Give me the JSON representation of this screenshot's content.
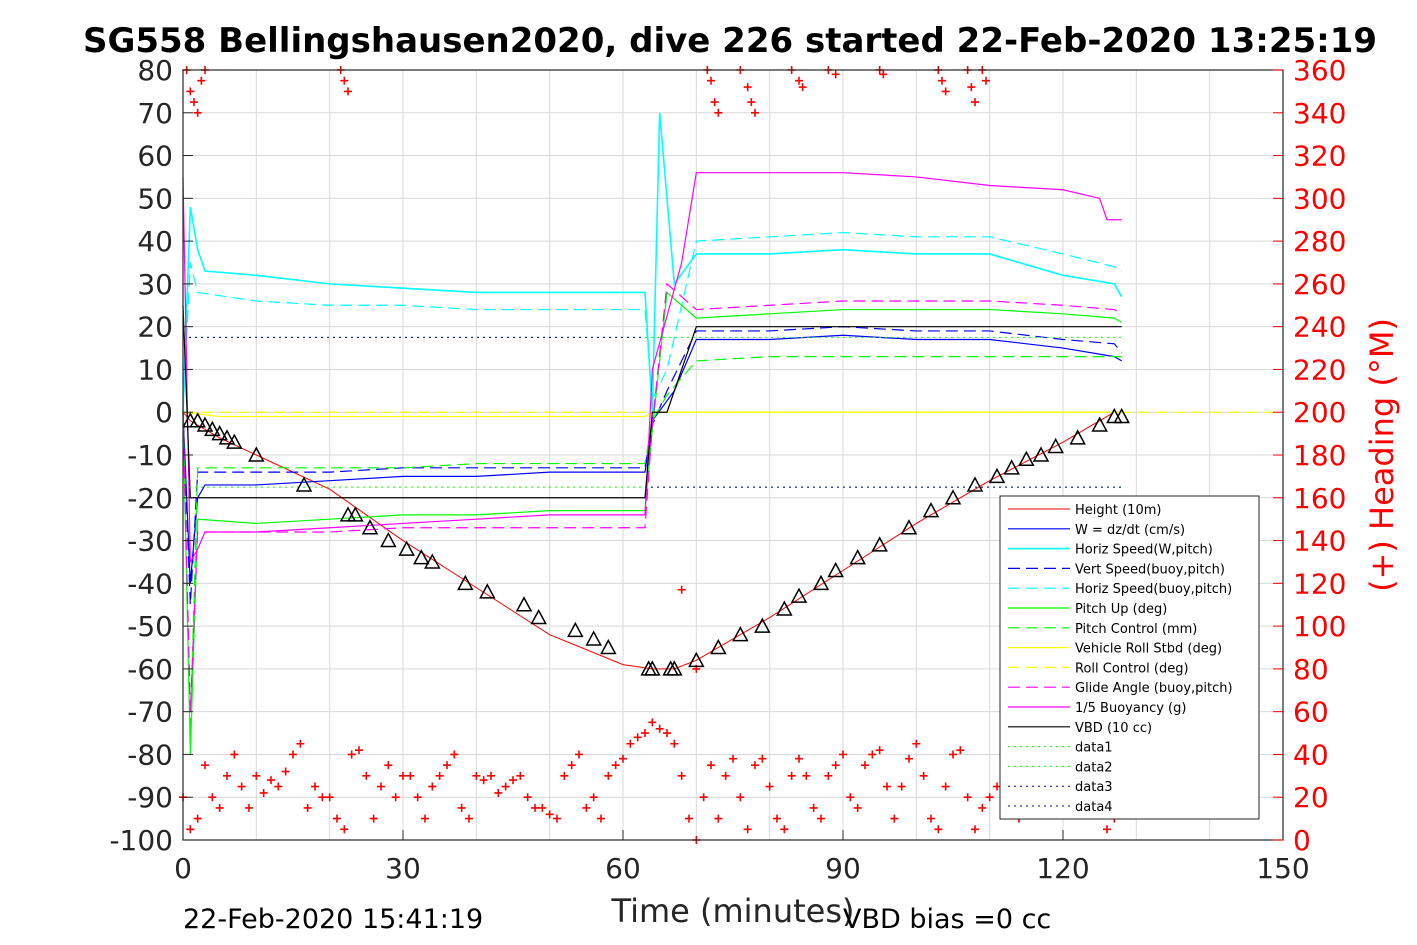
{
  "header": {
    "title": "SG558 Bellingshausen2020, dive 226 started 22-Feb-2020 13:25:19"
  },
  "footer": {
    "end_time": "22-Feb-2020 15:41:19",
    "vbd_bias": "VBD bias =0 cc"
  },
  "colors": {
    "height": "#ff0000",
    "w": "#0000ff",
    "horiz_speed": "#00ffff",
    "pitch": "#00ff00",
    "roll": "#ffff00",
    "glide": "#ff00ff",
    "buoyancy": "#ff00ff",
    "vbd": "#000000",
    "heading": "#ff0000",
    "grid": "#d9d9d9"
  },
  "chart_data": {
    "type": "line",
    "xlabel": "Time (minutes)",
    "ylabel_left": "",
    "ylabel_right": "(+) Heading (°M)",
    "xlim": [
      0,
      150
    ],
    "ylim_left": [
      -100,
      80
    ],
    "ylim_right": [
      0,
      360
    ],
    "grid": true,
    "legend_position": "lower-right",
    "x_ticks": [
      "0",
      "30",
      "60",
      "90",
      "120",
      "150"
    ],
    "y_ticks_left": [
      "80",
      "70",
      "60",
      "50",
      "40",
      "30",
      "20",
      "10",
      "0",
      "-10",
      "-20",
      "-30",
      "-40",
      "-50",
      "-60",
      "-70",
      "-80",
      "-90",
      "-100"
    ],
    "y_ticks_right": [
      "360",
      "340",
      "320",
      "300",
      "280",
      "260",
      "240",
      "220",
      "200",
      "180",
      "160",
      "140",
      "120",
      "100",
      "80",
      "60",
      "40",
      "20",
      "0"
    ],
    "legend": [
      "Height (10m)",
      "W = dz/dt (cm/s)",
      "Horiz Speed(W,pitch)",
      "Vert Speed(buoy,pitch)",
      "Horiz Speed(buoy,pitch)",
      "Pitch Up (deg)",
      "Pitch Control (mm)",
      "Vehicle Roll Stbd (deg)",
      "Roll Control (deg)",
      "Glide Angle (buoy,pitch)",
      "1/5 Buoyancy (g)",
      "VBD (10 cc)",
      "data1",
      "data2",
      "data3",
      "data4"
    ],
    "series": [
      {
        "name": "Height (10m)",
        "x": [
          0,
          1,
          5,
          10,
          20,
          30,
          40,
          50,
          60,
          64,
          67,
          70,
          80,
          90,
          100,
          110,
          120,
          127
        ],
        "y": [
          0,
          -2,
          -6,
          -10,
          -18,
          -30,
          -41,
          -52,
          -59,
          -60,
          -60,
          -58,
          -48,
          -37,
          -26,
          -16,
          -7,
          0
        ]
      },
      {
        "name": "W = dz/dt (cm/s)",
        "x": [
          0,
          1,
          2,
          3,
          10,
          20,
          30,
          40,
          50,
          63,
          64,
          67,
          70,
          80,
          90,
          100,
          110,
          120,
          127,
          128
        ],
        "y": [
          0,
          -40,
          -20,
          -17,
          -17,
          -16,
          -15,
          -15,
          -14,
          -14,
          -2,
          5,
          17,
          17,
          18,
          17,
          17,
          15,
          13,
          12
        ]
      },
      {
        "name": "Horiz Speed(W,pitch)",
        "x": [
          0,
          1,
          2,
          3,
          10,
          20,
          30,
          40,
          50,
          63,
          64,
          65,
          67,
          70,
          80,
          90,
          100,
          110,
          120,
          127,
          128
        ],
        "y": [
          0,
          48,
          38,
          33,
          32,
          30,
          29,
          28,
          28,
          28,
          0,
          70,
          30,
          37,
          37,
          38,
          37,
          37,
          32,
          30,
          27
        ]
      },
      {
        "name": "Vert Speed(buoy,pitch)",
        "x": [
          0,
          1,
          2,
          10,
          20,
          30,
          40,
          50,
          63,
          64,
          66,
          70,
          80,
          90,
          100,
          110,
          120,
          127,
          128
        ],
        "y": [
          0,
          -45,
          -14,
          -14,
          -14,
          -13,
          -13,
          -13,
          -13,
          -3,
          5,
          19,
          19,
          20,
          19,
          19,
          17,
          16,
          14
        ]
      },
      {
        "name": "Horiz Speed(buoy,pitch)",
        "x": [
          0,
          1,
          2,
          10,
          20,
          30,
          40,
          50,
          63,
          64,
          66,
          70,
          80,
          90,
          100,
          110,
          120,
          127,
          128
        ],
        "y": [
          0,
          35,
          28,
          26,
          25,
          25,
          24,
          24,
          24,
          3,
          10,
          40,
          41,
          42,
          41,
          41,
          37,
          34,
          33
        ]
      },
      {
        "name": "Pitch Up (deg)",
        "x": [
          0,
          1,
          2,
          10,
          20,
          30,
          40,
          50,
          63,
          64,
          66,
          70,
          80,
          90,
          100,
          110,
          120,
          127,
          128
        ],
        "y": [
          0,
          -80,
          -25,
          -26,
          -25,
          -24,
          -24,
          -23,
          -23,
          -4,
          28,
          22,
          23,
          24,
          24,
          24,
          23,
          22,
          21
        ]
      },
      {
        "name": "Pitch Control (mm)",
        "x": [
          0,
          1,
          2,
          10,
          20,
          30,
          40,
          50,
          63,
          64,
          66,
          70,
          80,
          90,
          100,
          110,
          120,
          127,
          128
        ],
        "y": [
          0,
          -75,
          -13,
          -13,
          -13,
          -13,
          -12,
          -12,
          -12,
          -2,
          4,
          12,
          13,
          13,
          13,
          13,
          13,
          13,
          13
        ]
      },
      {
        "name": "Vehicle Roll Stbd (deg)",
        "x": [
          0,
          5,
          10,
          20,
          30,
          40,
          50,
          60,
          63,
          64,
          70,
          80,
          90,
          100,
          110,
          120,
          127,
          128
        ],
        "y": [
          0,
          -1,
          -1,
          -1,
          -1,
          -1,
          -1,
          -1,
          -1,
          0,
          0,
          0,
          0,
          0,
          0,
          0,
          0,
          0
        ]
      },
      {
        "name": "Roll Control (deg)",
        "x": [
          0,
          150
        ],
        "y": [
          0,
          0
        ]
      },
      {
        "name": "Glide Angle (buoy,pitch)",
        "x": [
          0,
          1,
          2,
          10,
          20,
          30,
          40,
          50,
          63,
          64,
          66,
          70,
          80,
          90,
          100,
          110,
          120,
          127,
          128
        ],
        "y": [
          0,
          -70,
          -28,
          -28,
          -28,
          -27,
          -27,
          -27,
          -27,
          -3,
          30,
          24,
          25,
          26,
          26,
          26,
          25,
          24,
          23
        ]
      },
      {
        "name": "1/5 Buoyancy (g)",
        "x": [
          0,
          1,
          2,
          3,
          10,
          20,
          30,
          40,
          50,
          63,
          64,
          68,
          70,
          80,
          90,
          100,
          110,
          120,
          125,
          126,
          128
        ],
        "y": [
          55,
          -35,
          -32,
          -28,
          -28,
          -27,
          -26,
          -25,
          -24,
          -24,
          10,
          35,
          56,
          56,
          56,
          55,
          53,
          52,
          50,
          45,
          45
        ]
      },
      {
        "name": "VBD (10 cc)",
        "x": [
          0,
          1,
          2,
          63,
          64,
          66,
          70,
          128
        ],
        "y": [
          25,
          -20,
          -20,
          -20,
          0,
          0,
          20,
          20
        ]
      },
      {
        "name": "data1",
        "x": [
          0,
          128
        ],
        "y": [
          17.5,
          17.5
        ]
      },
      {
        "name": "data2",
        "x": [
          0,
          128
        ],
        "y": [
          -17.5,
          -17.5
        ]
      },
      {
        "name": "data3",
        "x": [
          0,
          63
        ],
        "y": [
          17.5,
          17.5
        ]
      },
      {
        "name": "data4",
        "x": [
          63,
          128
        ],
        "y": [
          -17.5,
          -17.5
        ]
      }
    ],
    "heading_points": {
      "name": "(+) Heading (°M)",
      "x": [
        0,
        1,
        2,
        3,
        4,
        5,
        6,
        7,
        8,
        9,
        10,
        11,
        12,
        13,
        14,
        15,
        16,
        17,
        18,
        19,
        20,
        21,
        22,
        23,
        24,
        25,
        26,
        27,
        28,
        29,
        30,
        31,
        32,
        33,
        34,
        35,
        36,
        37,
        38,
        39,
        40,
        41,
        42,
        43,
        44,
        45,
        46,
        47,
        48,
        49,
        50,
        51,
        52,
        53,
        54,
        55,
        56,
        57,
        58,
        59,
        60,
        61,
        62,
        63,
        64,
        65,
        66,
        67,
        68,
        69,
        70,
        71,
        72,
        73,
        74,
        75,
        76,
        77,
        78,
        79,
        80,
        81,
        82,
        83,
        84,
        85,
        86,
        87,
        88,
        89,
        90,
        91,
        92,
        93,
        94,
        95,
        96,
        97,
        98,
        99,
        100,
        101,
        102,
        103,
        104,
        105,
        106,
        107,
        108,
        109,
        110,
        111,
        112,
        113,
        114,
        115,
        116,
        117,
        118,
        119,
        120,
        121,
        122,
        123,
        124,
        125,
        126,
        127
      ],
      "y": [
        20,
        5,
        10,
        35,
        20,
        15,
        30,
        40,
        25,
        15,
        30,
        22,
        28,
        25,
        32,
        40,
        45,
        15,
        25,
        20,
        20,
        10,
        5,
        40,
        42,
        30,
        10,
        25,
        35,
        20,
        30,
        30,
        20,
        10,
        25,
        30,
        35,
        40,
        15,
        10,
        30,
        28,
        30,
        22,
        25,
        28,
        30,
        20,
        15,
        15,
        12,
        10,
        30,
        35,
        40,
        15,
        20,
        10,
        30,
        35,
        38,
        45,
        48,
        50,
        55,
        52,
        50,
        45,
        30,
        10,
        0,
        20,
        35,
        10,
        30,
        38,
        20,
        5,
        35,
        38,
        25,
        10,
        5,
        30,
        38,
        30,
        15,
        10,
        30,
        35,
        40,
        20,
        15,
        35,
        40,
        42,
        25,
        10,
        25,
        38,
        45,
        30,
        10,
        5,
        25,
        40,
        42,
        20,
        5,
        15,
        20,
        25,
        30,
        15,
        10,
        20,
        25,
        30,
        35,
        25,
        20,
        15,
        25,
        30,
        20,
        15,
        5,
        10
      ]
    },
    "heading_top_clusters": [
      {
        "x": [
          0.5,
          1,
          1.5,
          2,
          2.5,
          3
        ],
        "y": [
          360,
          350,
          345,
          340,
          355,
          360
        ]
      },
      {
        "x": [
          21.5,
          22,
          22.5
        ],
        "y": [
          360,
          355,
          350
        ]
      },
      {
        "x": [
          71.5,
          72,
          72.5,
          73
        ],
        "y": [
          360,
          355,
          345,
          340
        ]
      },
      {
        "x": [
          76,
          77,
          77.5,
          78
        ],
        "y": [
          360,
          352,
          345,
          340
        ]
      },
      {
        "x": [
          83,
          84,
          84.5
        ],
        "y": [
          360,
          355,
          352
        ]
      },
      {
        "x": [
          88,
          89
        ],
        "y": [
          360,
          358
        ]
      },
      {
        "x": [
          95,
          95.5
        ],
        "y": [
          360,
          358
        ]
      },
      {
        "x": [
          103,
          103.5,
          104
        ],
        "y": [
          360,
          355,
          350
        ]
      },
      {
        "x": [
          107,
          107.5,
          108
        ],
        "y": [
          360,
          352,
          345
        ]
      },
      {
        "x": [
          109,
          109.5
        ],
        "y": [
          360,
          355
        ]
      }
    ],
    "triangle_markers_x": [
      1,
      2,
      3,
      4,
      5,
      6,
      7,
      10,
      16.5,
      22.5,
      23.5,
      25.5,
      28,
      30.5,
      32.5,
      34,
      38.5,
      41.5,
      46.5,
      48.5,
      53.5,
      56,
      58,
      63.5,
      64,
      66.5,
      67,
      70,
      73,
      76,
      79,
      82,
      84,
      87,
      89,
      92,
      95,
      99,
      102,
      105,
      108,
      111,
      113,
      115,
      117,
      119,
      122,
      125,
      127,
      128
    ],
    "triangle_markers_y": [
      -2,
      -2,
      -3,
      -4,
      -5,
      -6,
      -7,
      -10,
      -17,
      -24,
      -24,
      -27,
      -30,
      -32,
      -34,
      -35,
      -40,
      -42,
      -45,
      -48,
      -51,
      -53,
      -55,
      -60,
      -60,
      -60,
      -60,
      -58,
      -55,
      -52,
      -50,
      -46,
      -43,
      -40,
      -37,
      -34,
      -31,
      -27,
      -23,
      -20,
      -17,
      -15,
      -13,
      -11,
      -10,
      -8,
      -6,
      -3,
      -1,
      -1
    ],
    "outlier_heading_points": {
      "x": [
        68,
        70
      ],
      "y": [
        117,
        80
      ]
    }
  }
}
